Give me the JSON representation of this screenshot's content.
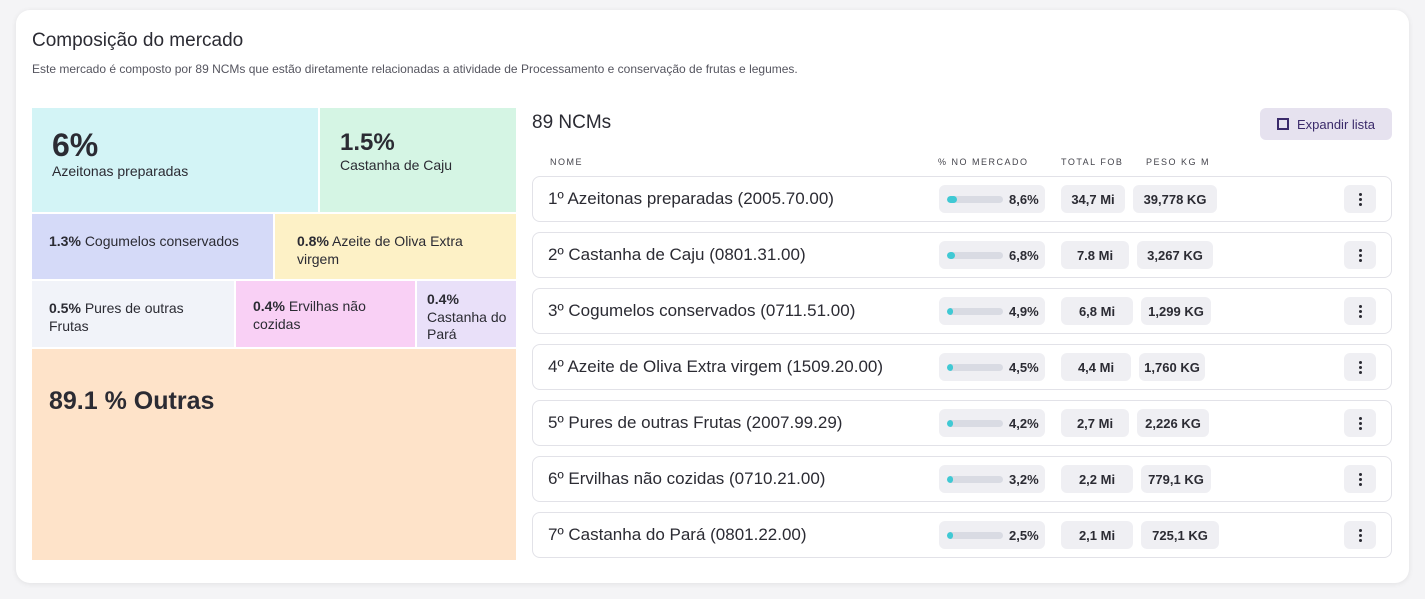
{
  "header": {
    "title": "Composição do mercado",
    "subtitle": "Este mercado é composto por 89 NCMs que estão diretamente relacionadas a atividade de Processamento e conservação de frutas e legumes."
  },
  "treemap": {
    "tiles": [
      {
        "pct": "6%",
        "label": "Azeitonas preparadas",
        "color": "#d3f4f6"
      },
      {
        "pct": "1.5%",
        "label": "Castanha de Caju",
        "color": "#d5f5e4"
      },
      {
        "pct": "1.3%",
        "label": "Cogumelos conservados",
        "color": "#d5daf8"
      },
      {
        "pct": "0.8%",
        "label": "Azeite de Oliva Extra virgem",
        "color": "#fdf1c6"
      },
      {
        "pct": "0.5%",
        "label": "Pures de outras Frutas",
        "color": "#f1f3f9"
      },
      {
        "pct": "0.4%",
        "label": "Ervilhas não cozidas",
        "color": "#f9d0f5"
      },
      {
        "pct": "0.4%",
        "label": "Castanha do Pará",
        "color": "#e9e0f9"
      },
      {
        "pct": "89.1 %",
        "label": "Outras",
        "color": "#fee3c9"
      }
    ]
  },
  "list": {
    "title": "89 NCMs",
    "expand_label": "Expandir lista",
    "columns": {
      "name": "NOME",
      "market": "% NO MERCADO",
      "fob": "TOTAL FOB",
      "peso": "PESO KG M"
    },
    "rows": [
      {
        "name": "1º Azeitonas preparadas (2005.70.00)",
        "pct": "8,6%",
        "share": 0.086,
        "fob": "34,7 Mi",
        "peso": "39,778 KG"
      },
      {
        "name": "2º Castanha de Caju (0801.31.00)",
        "pct": "6,8%",
        "share": 0.068,
        "fob": "7.8 Mi",
        "peso": "3,267 KG"
      },
      {
        "name": "3º Cogumelos conservados (0711.51.00)",
        "pct": "4,9%",
        "share": 0.049,
        "fob": "6,8 Mi",
        "peso": "1,299 KG"
      },
      {
        "name": "4º Azeite de Oliva Extra virgem (1509.20.00)",
        "pct": "4,5%",
        "share": 0.045,
        "fob": "4,4 Mi",
        "peso": "1,760 KG"
      },
      {
        "name": "5º Pures de outras Frutas (2007.99.29)",
        "pct": "4,2%",
        "share": 0.042,
        "fob": "2,7 Mi",
        "peso": "2,226 KG"
      },
      {
        "name": "6º Ervilhas não cozidas (0710.21.00)",
        "pct": "3,2%",
        "share": 0.032,
        "fob": "2,2 Mi",
        "peso": "779,1 KG"
      },
      {
        "name": "7º Castanha do Pará (0801.22.00)",
        "pct": "2,5%",
        "share": 0.025,
        "fob": "2,1 Mi",
        "peso": "725,1 KG"
      }
    ]
  }
}
